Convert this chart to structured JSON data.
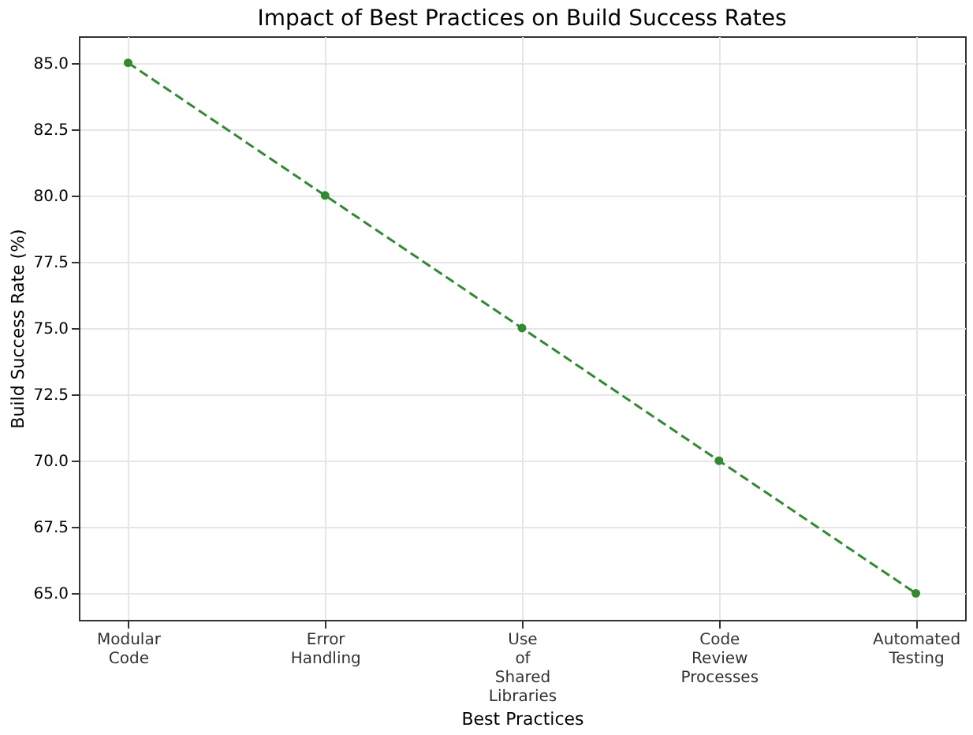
{
  "chart_data": {
    "type": "line",
    "title": "Impact of Best Practices on Build Success Rates",
    "xlabel": "Best Practices",
    "ylabel": "Build Success Rate (%)",
    "categories": [
      "Modular Code",
      "Error Handling",
      "Use of Shared Libraries",
      "Code Review Processes",
      "Automated Testing"
    ],
    "series": [
      {
        "color": "#2e8b2e",
        "values": [
          85,
          80,
          75,
          70,
          65
        ]
      }
    ],
    "ylim": [
      64,
      86
    ],
    "yticks": [
      {
        "value": 65,
        "label": "65.0"
      },
      67.5,
      {
        "value": 70,
        "label": "70.0"
      },
      72.5,
      {
        "value": 75,
        "label": "75.0"
      },
      77.5,
      {
        "value": 80,
        "label": "80.0"
      },
      82.5,
      {
        "value": 85,
        "label": "85.0"
      }
    ],
    "grid": true,
    "marker": "circle",
    "line_style": "dashed"
  }
}
